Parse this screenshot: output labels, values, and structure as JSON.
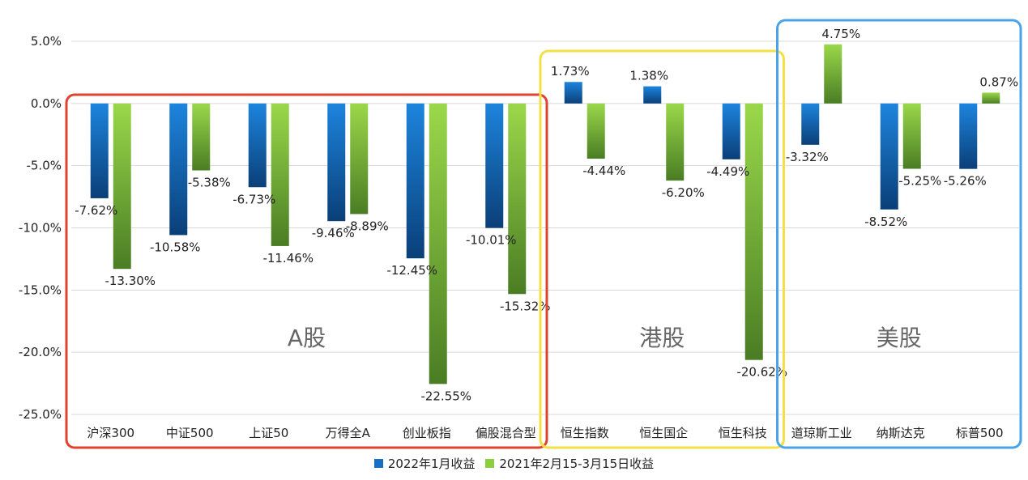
{
  "chart_data": {
    "type": "bar",
    "categories": [
      "沪深300",
      "中证500",
      "上证50",
      "万得全A",
      "创业板指",
      "偏股混合型",
      "恒生指数",
      "恒生国企",
      "恒生科技",
      "道琼斯工业",
      "纳斯达克",
      "标普500"
    ],
    "series": [
      {
        "name": "2022年1月收益",
        "values": [
          -7.62,
          -10.58,
          -6.73,
          -9.46,
          -12.45,
          -10.01,
          1.73,
          1.38,
          -4.49,
          -3.32,
          -8.52,
          -5.26
        ],
        "color": "#1a6fc4"
      },
      {
        "name": "2021年2月15-3月15日收益",
        "values": [
          -13.3,
          -5.38,
          -11.46,
          -8.89,
          -22.55,
          -15.32,
          -4.44,
          -6.2,
          -20.62,
          4.75,
          -5.25,
          0.87
        ],
        "color": "#8ccf3e"
      }
    ],
    "data_labels": [
      [
        "-7.62%",
        "-10.58%",
        "-6.73%",
        "-9.46%",
        "-12.45%",
        "-10.01%",
        "1.73%",
        "1.38%",
        "-4.49%",
        "-3.32%",
        "-8.52%",
        "-5.26%"
      ],
      [
        "-13.30%",
        "-5.38%",
        "-11.46%",
        "-8.89%",
        "-22.55%",
        "-15.32%",
        "-4.44%",
        "-6.20%",
        "-20.62%",
        "4.75%",
        "-5.25%",
        "0.87%"
      ]
    ],
    "ylim": [
      -25,
      5
    ],
    "yticks": [
      5,
      0,
      -5,
      -10,
      -15,
      -20,
      -25
    ],
    "ytick_labels": [
      "5.0%",
      "0.0%",
      "-5.0%",
      "-10.0%",
      "-15.0%",
      "-20.0%",
      "-25.0%"
    ],
    "grid": true,
    "legend_position": "bottom",
    "groups": [
      {
        "label": "A股",
        "range": [
          0,
          5
        ],
        "color": "#e0432d"
      },
      {
        "label": "港股",
        "range": [
          6,
          8
        ],
        "color": "#f5e043"
      },
      {
        "label": "美股",
        "range": [
          9,
          11
        ],
        "color": "#4aa3e8"
      }
    ]
  }
}
